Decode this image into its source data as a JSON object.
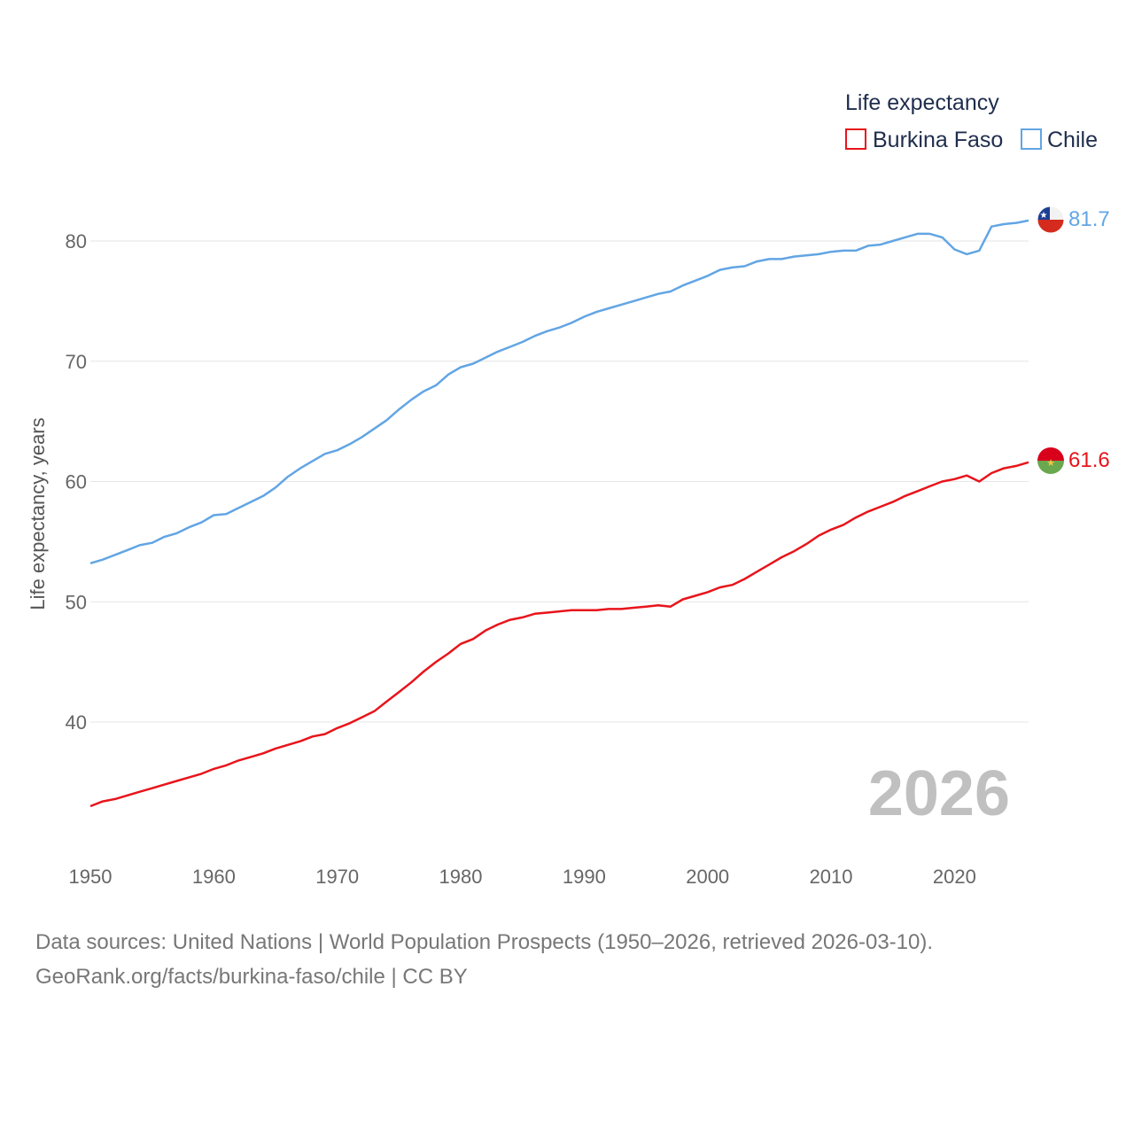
{
  "colors": {
    "burkina": "#e8141b",
    "chile": "#62a5e4",
    "grid": "#e6e6e6"
  },
  "legend": {
    "title": "Life expectancy",
    "items": [
      "Burkina Faso",
      "Chile"
    ]
  },
  "year_label": "2026",
  "footer": {
    "line1": "Data sources: United Nations | World Population Prospects (1950–2026, retrieved 2026-03-10).",
    "line2": "GeoRank.org/facts/burkina-faso/chile | CC BY"
  },
  "chart_data": {
    "type": "line",
    "title": "",
    "xlabel": "",
    "ylabel": "Life expectancy, years",
    "xlim": [
      1950,
      2026
    ],
    "ylim": [
      31,
      85
    ],
    "xticks": [
      1950,
      1960,
      1970,
      1980,
      1990,
      2000,
      2010,
      2020
    ],
    "yticks": [
      40,
      50,
      60,
      70,
      80
    ],
    "grid": true,
    "legend_position": "top-right",
    "x_start": 1950,
    "series": [
      {
        "name": "Burkina Faso",
        "end_label": "61.6",
        "values": [
          33.0,
          33.4,
          33.6,
          33.9,
          34.2,
          34.5,
          34.8,
          35.1,
          35.4,
          35.7,
          36.1,
          36.4,
          36.8,
          37.1,
          37.4,
          37.8,
          38.1,
          38.4,
          38.8,
          39.0,
          39.5,
          39.9,
          40.4,
          40.9,
          41.7,
          42.5,
          43.3,
          44.2,
          45.0,
          45.7,
          46.5,
          46.9,
          47.6,
          48.1,
          48.5,
          48.7,
          49.0,
          49.1,
          49.2,
          49.3,
          49.3,
          49.3,
          49.4,
          49.4,
          49.5,
          49.6,
          49.7,
          49.6,
          50.2,
          50.5,
          50.8,
          51.2,
          51.4,
          51.9,
          52.5,
          53.1,
          53.7,
          54.2,
          54.8,
          55.5,
          56.0,
          56.4,
          57.0,
          57.5,
          57.9,
          58.3,
          58.8,
          59.2,
          59.6,
          60.0,
          60.2,
          60.5,
          60.0,
          60.7,
          61.1,
          61.3,
          61.6
        ]
      },
      {
        "name": "Chile",
        "end_label": "81.7",
        "values": [
          53.2,
          53.5,
          53.9,
          54.3,
          54.7,
          54.9,
          55.4,
          55.7,
          56.2,
          56.6,
          57.2,
          57.3,
          57.8,
          58.3,
          58.8,
          59.5,
          60.4,
          61.1,
          61.7,
          62.3,
          62.6,
          63.1,
          63.7,
          64.4,
          65.1,
          66.0,
          66.8,
          67.5,
          68.0,
          68.9,
          69.5,
          69.8,
          70.3,
          70.8,
          71.2,
          71.6,
          72.1,
          72.5,
          72.8,
          73.2,
          73.7,
          74.1,
          74.4,
          74.7,
          75.0,
          75.3,
          75.6,
          75.8,
          76.3,
          76.7,
          77.1,
          77.6,
          77.8,
          77.9,
          78.3,
          78.5,
          78.5,
          78.7,
          78.8,
          78.9,
          79.1,
          79.2,
          79.2,
          79.6,
          79.7,
          80.0,
          80.3,
          80.6,
          80.6,
          80.3,
          79.3,
          78.9,
          79.2,
          81.2,
          81.4,
          81.5,
          81.7
        ]
      }
    ]
  }
}
